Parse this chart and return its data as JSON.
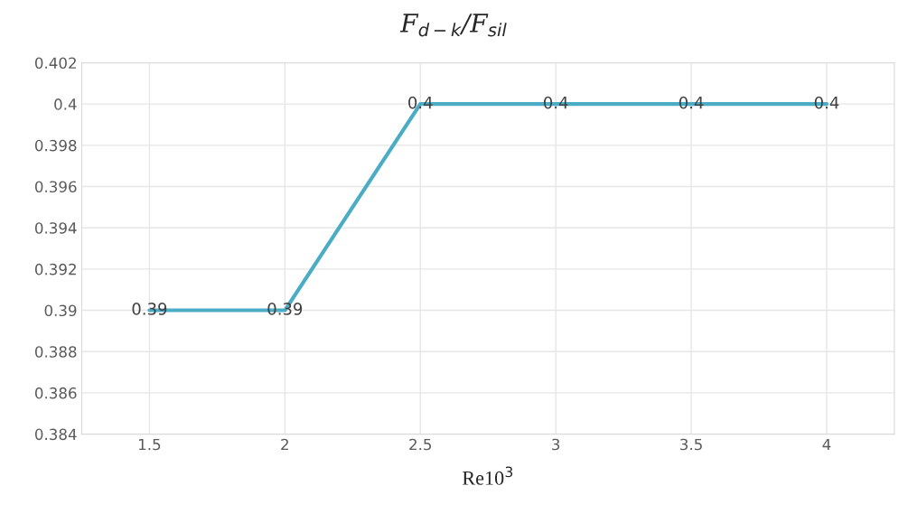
{
  "chart_data": {
    "type": "line",
    "title": "F$_{d−k}$/F$_{sil}$",
    "xlabel": "Re10$^{3}$",
    "categories": [
      "1.5",
      "2",
      "2.5",
      "3",
      "3.5",
      "4"
    ],
    "series": [
      {
        "color": "#4bacc6",
        "values": [
          0.39,
          0.39,
          0.4,
          0.4,
          0.4,
          0.4
        ]
      }
    ],
    "ylim": [
      0.384,
      0.402
    ],
    "yticks": [
      0.384,
      0.386,
      0.388,
      0.39,
      0.392,
      0.394,
      0.396,
      0.398,
      0.4,
      0.402
    ],
    "grid": true,
    "data_labels": true,
    "marker": "none",
    "line_style": "solid"
  }
}
